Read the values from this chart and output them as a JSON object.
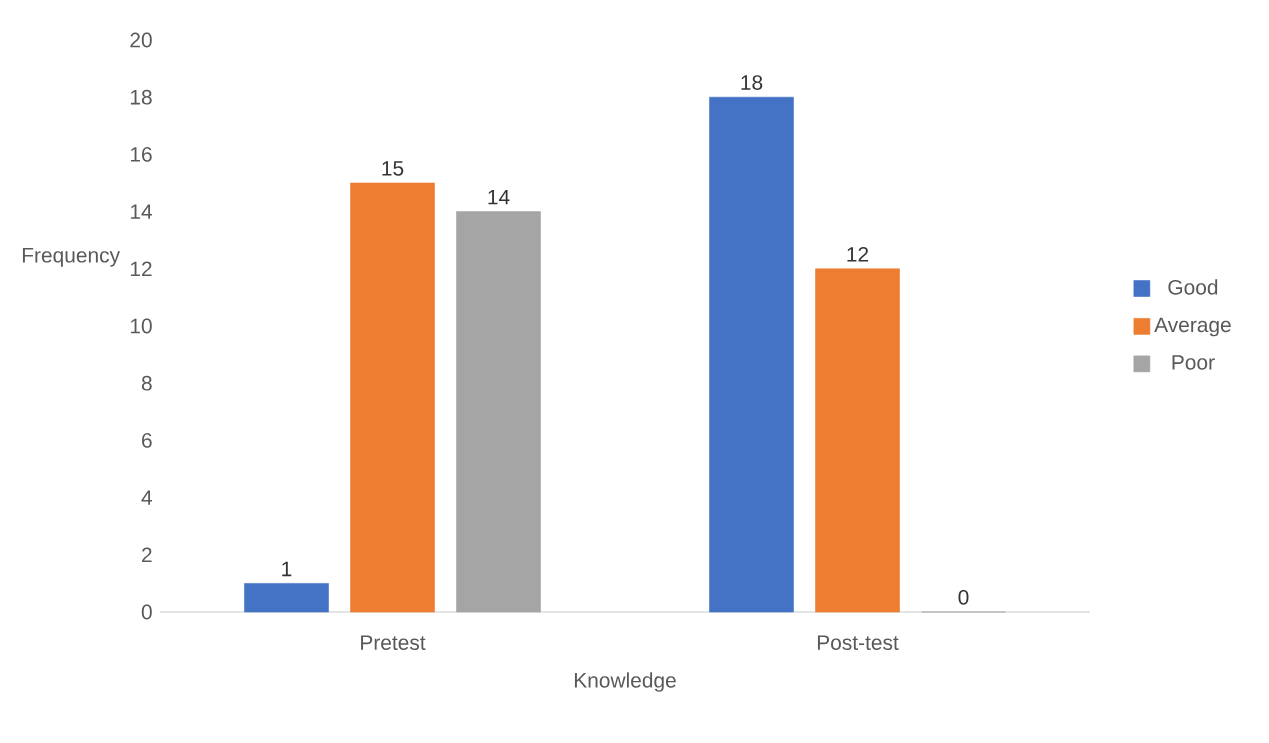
{
  "chart_data": {
    "type": "bar",
    "xlabel": "Knowledge",
    "ylabel": "Frequency",
    "categories": [
      "Pretest",
      "Post-test"
    ],
    "series": [
      {
        "name": "Good",
        "color": "#4472c4",
        "values": [
          1,
          18
        ]
      },
      {
        "name": "Average",
        "color": "#ed7d31",
        "values": [
          15,
          12
        ]
      },
      {
        "name": "Poor",
        "color": "#a5a5a5",
        "values": [
          14,
          0
        ]
      }
    ],
    "ylim": [
      0,
      20
    ],
    "yticks": [
      0,
      2,
      4,
      6,
      8,
      10,
      12,
      14,
      16,
      18,
      20
    ],
    "data_labels": true,
    "legend": "right",
    "grid": false
  }
}
